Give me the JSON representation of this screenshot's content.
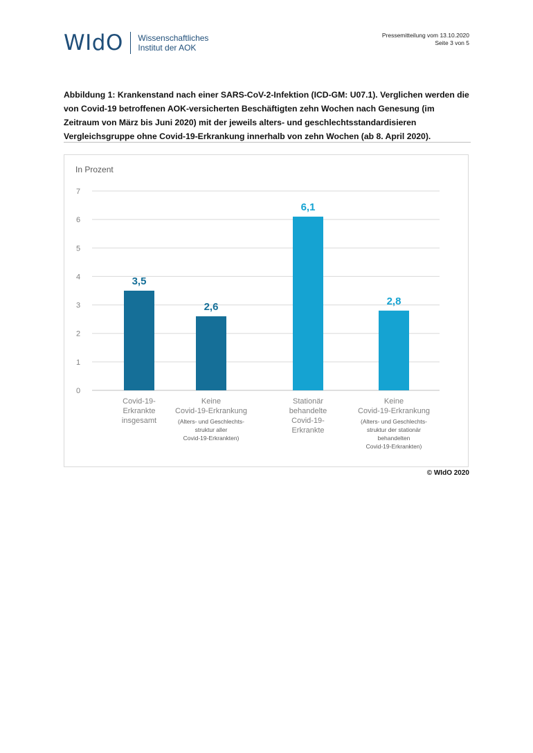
{
  "header": {
    "logo": "WIdO",
    "org_line1": "Wissenschaftliches",
    "org_line2": "Institut der AOK",
    "press_line1": "Pressemitteilung vom 13.10.2020",
    "press_line2": "Seite 3 von 5"
  },
  "caption": "Abbildung 1: Krankenstand nach einer SARS-CoV-2-Infektion (ICD-GM: U07.1). Verglichen werden die von Covid-19 betroffenen AOK-versicherten Beschäftigten zehn Wochen nach Genesung (im Zeitraum von März bis Juni 2020) mit der jeweils alters- und geschlechtsstandardisieren Vergleichsgruppe ohne Covid-19-Erkrankung innerhalb von zehn Wochen (ab 8. April 2020).",
  "copyright": "© WIdO 2020",
  "colors": {
    "dark_blue": "#156f98",
    "light_blue": "#15a3d2",
    "grid": "#d9d9d9",
    "axis_text": "#7f7f7f"
  },
  "chart_data": {
    "type": "bar",
    "ylabel": "In Prozent",
    "ylim": [
      0,
      7
    ],
    "yticks": [
      "0",
      "1",
      "2",
      "3",
      "4",
      "5",
      "6",
      "7"
    ],
    "grid": true,
    "bars": [
      {
        "value": 3.5,
        "label": "3,5",
        "color": "#156f98",
        "category": [
          "Covid-19-",
          "Erkrankte",
          "insgesamt"
        ],
        "note": []
      },
      {
        "value": 2.6,
        "label": "2,6",
        "color": "#156f98",
        "category": [
          "Keine",
          "Covid-19-Erkrankung"
        ],
        "note": [
          "(Alters- und Geschlechts-",
          "struktur aller",
          "Covid-19-Erkrankten)"
        ]
      },
      {
        "value": 6.1,
        "label": "6,1",
        "color": "#15a3d2",
        "category": [
          "Stationär",
          "behandelte",
          "Covid-19-",
          "Erkrankte"
        ],
        "note": []
      },
      {
        "value": 2.8,
        "label": "2,8",
        "color": "#15a3d2",
        "category": [
          "Keine",
          "Covid-19-Erkrankung"
        ],
        "note": [
          "(Alters- und Geschlechts-",
          "struktur der stationär",
          "behandelten",
          "Covid-19-Erkrankten)"
        ]
      }
    ]
  }
}
